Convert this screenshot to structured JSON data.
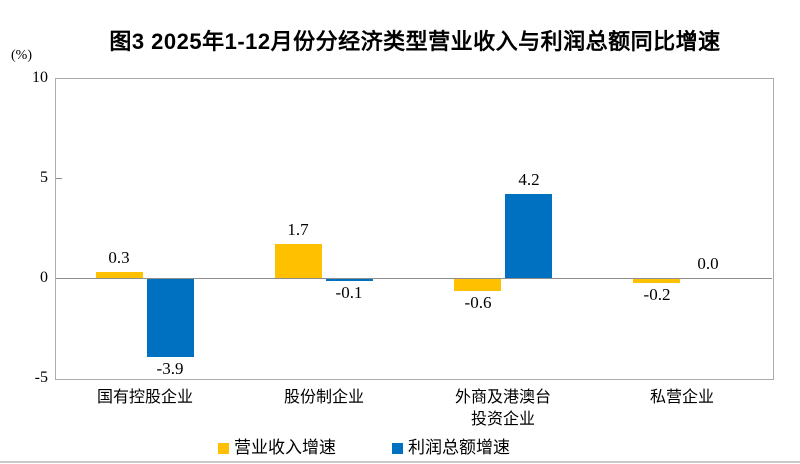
{
  "chart_data": {
    "type": "bar",
    "title": "图3 2025年1-12月份分经济类型营业收入与利润总额同比增速",
    "categories": [
      "国有控股企业",
      "股份制企业",
      "外商及港澳台\n投资企业",
      "私营企业"
    ],
    "series": [
      {
        "name": "营业收入增速",
        "color": "#FFC000",
        "values": [
          0.3,
          1.7,
          -0.6,
          -0.2
        ]
      },
      {
        "name": "利润总额增速",
        "color": "#0070C0",
        "values": [
          -3.9,
          -0.1,
          4.2,
          0.0
        ]
      }
    ],
    "value_labels": [
      [
        "0.3",
        "1.7",
        "-0.6",
        "-0.2"
      ],
      [
        "-3.9",
        "-0.1",
        "4.2",
        "0.0"
      ]
    ],
    "xlabel": "",
    "ylabel": "(%)",
    "ylim": [
      -5,
      10
    ],
    "yticks": [
      10,
      5,
      0,
      -5
    ],
    "grid": false,
    "legend_position": "bottom",
    "colors": {
      "plot_border": "#ABABAB",
      "zero_line": "#8E8E8E",
      "text": "#000000"
    }
  }
}
